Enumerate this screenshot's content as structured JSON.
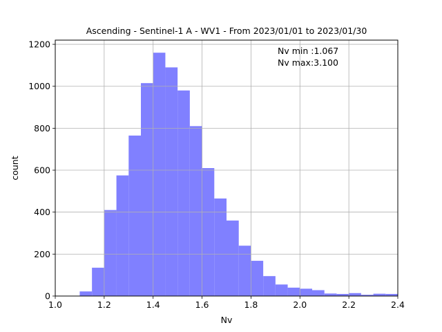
{
  "chart_data": {
    "type": "bar",
    "title": "Ascending - Sentinel-1 A - WV1 - From 2023/01/01 to 2023/01/30",
    "xlabel": "Nv",
    "ylabel": "count",
    "xlim": [
      1.0,
      2.4
    ],
    "ylim": [
      0,
      1220
    ],
    "xticks": [
      "1.0",
      "1.2",
      "1.4",
      "1.6",
      "1.8",
      "2.0",
      "2.2",
      "2.4"
    ],
    "yticks": [
      "0",
      "200",
      "400",
      "600",
      "800",
      "1000",
      "1200"
    ],
    "grid": true,
    "bar_color": "#8080ff",
    "bin_width": 0.05,
    "bins": [
      {
        "x0": 1.1,
        "count": 22
      },
      {
        "x0": 1.15,
        "count": 135
      },
      {
        "x0": 1.2,
        "count": 410
      },
      {
        "x0": 1.25,
        "count": 575
      },
      {
        "x0": 1.3,
        "count": 765
      },
      {
        "x0": 1.35,
        "count": 1015
      },
      {
        "x0": 1.4,
        "count": 1160
      },
      {
        "x0": 1.45,
        "count": 1090
      },
      {
        "x0": 1.5,
        "count": 980
      },
      {
        "x0": 1.55,
        "count": 810
      },
      {
        "x0": 1.6,
        "count": 610
      },
      {
        "x0": 1.65,
        "count": 465
      },
      {
        "x0": 1.7,
        "count": 360
      },
      {
        "x0": 1.75,
        "count": 240
      },
      {
        "x0": 1.8,
        "count": 168
      },
      {
        "x0": 1.85,
        "count": 95
      },
      {
        "x0": 1.9,
        "count": 55
      },
      {
        "x0": 1.95,
        "count": 40
      },
      {
        "x0": 2.0,
        "count": 35
      },
      {
        "x0": 2.05,
        "count": 28
      },
      {
        "x0": 2.1,
        "count": 12
      },
      {
        "x0": 2.15,
        "count": 10
      },
      {
        "x0": 2.2,
        "count": 14
      },
      {
        "x0": 2.25,
        "count": 6
      },
      {
        "x0": 2.3,
        "count": 11
      },
      {
        "x0": 2.35,
        "count": 10
      }
    ],
    "annotations": [
      "Nv min :1.067",
      "Nv max:3.100"
    ]
  }
}
